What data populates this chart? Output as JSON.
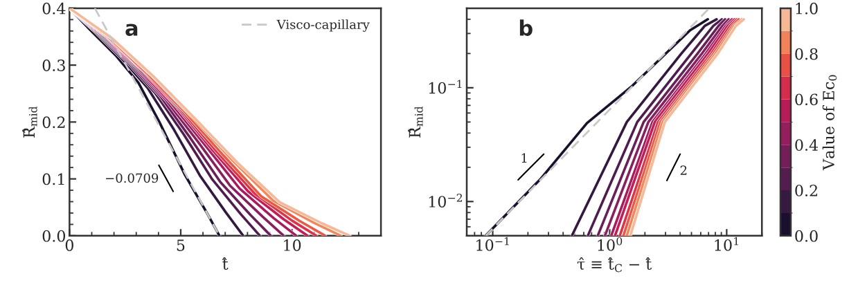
{
  "chart_data": [
    {
      "type": "line",
      "xlabel": "t̂",
      "ylabel": "R̂$_{mid}$",
      "xlim": [
        0,
        14
      ],
      "ylim": [
        0,
        0.4
      ],
      "xticks": [
        0,
        {
          "value": 1,
          "label": null
        },
        {
          "value": 2,
          "label": null
        },
        {
          "value": 3,
          "label": null
        },
        {
          "value": 4,
          "label": null
        },
        5,
        {
          "value": 6,
          "label": null
        },
        {
          "value": 7,
          "label": null
        },
        {
          "value": 8,
          "label": null
        },
        {
          "value": 9,
          "label": null
        },
        10,
        {
          "value": 11,
          "label": null
        },
        {
          "value": 12,
          "label": null
        },
        {
          "value": 13,
          "label": null
        }
      ],
      "yticks": [
        {
          "value": 0,
          "label": "0.0"
        },
        {
          "value": 0.02,
          "label": null
        },
        {
          "value": 0.04,
          "label": null
        },
        {
          "value": 0.06,
          "label": null
        },
        {
          "value": 0.08,
          "label": null
        },
        0.1,
        {
          "value": 0.12,
          "label": null
        },
        {
          "value": 0.14,
          "label": null
        },
        {
          "value": 0.16,
          "label": null
        },
        {
          "value": 0.18,
          "label": null
        },
        0.2,
        {
          "value": 0.22,
          "label": null
        },
        {
          "value": 0.24,
          "label": null
        },
        {
          "value": 0.26,
          "label": null
        },
        {
          "value": 0.28,
          "label": null
        },
        0.3,
        {
          "value": 0.32,
          "label": null
        },
        {
          "value": 0.34,
          "label": null
        },
        {
          "value": 0.36,
          "label": null
        },
        {
          "value": 0.38,
          "label": null
        },
        0.4
      ],
      "grid": false,
      "legend": "top right",
      "annotations": [
        "a",
        "−0.0709"
      ],
      "series": [
        {
          "color": "#1a0f2c",
          "x": [
            0,
            0.93,
            2.08,
            3.1,
            4.04,
            5.19,
            6.21,
            6.74
          ],
          "values": [
            0.4,
            0.362,
            0.317,
            0.269,
            0.2,
            0.107,
            0.038,
            0
          ]
        },
        {
          "color": "#33193f",
          "x": [
            0,
            1.17,
            2.34,
            3.51,
            4.69,
            5.86,
            7.03,
            7.81
          ],
          "values": [
            0.4,
            0.358,
            0.312,
            0.26,
            0.187,
            0.106,
            0.041,
            0
          ]
        },
        {
          "color": "#4e1c4e",
          "x": [
            0,
            1.28,
            2.57,
            3.85,
            5.14,
            6.42,
            7.7,
            8.56
          ],
          "values": [
            0.4,
            0.356,
            0.307,
            0.251,
            0.178,
            0.099,
            0.038,
            0
          ]
        },
        {
          "color": "#6a1f58",
          "x": [
            0,
            1.36,
            2.72,
            4.07,
            5.43,
            6.79,
            8.15,
            9.05
          ],
          "values": [
            0.4,
            0.355,
            0.304,
            0.246,
            0.172,
            0.094,
            0.036,
            0
          ]
        },
        {
          "color": "#881f5e",
          "x": [
            0,
            1.44,
            2.89,
            4.33,
            5.78,
            7.22,
            8.67,
            9.63
          ],
          "values": [
            0.4,
            0.354,
            0.3,
            0.239,
            0.165,
            0.088,
            0.034,
            0
          ]
        },
        {
          "color": "#a71c5f",
          "x": [
            0,
            1.53,
            3.06,
            4.59,
            6.12,
            7.65,
            9.18,
            10.2
          ],
          "values": [
            0.4,
            0.353,
            0.296,
            0.232,
            0.158,
            0.083,
            0.031,
            0
          ]
        },
        {
          "color": "#c41c55",
          "x": [
            0,
            1.61,
            3.21,
            4.82,
            6.42,
            8.03,
            9.63,
            10.7
          ],
          "values": [
            0.4,
            0.352,
            0.293,
            0.227,
            0.151,
            0.078,
            0.029,
            0
          ]
        },
        {
          "color": "#dd3347",
          "x": [
            0,
            1.67,
            3.33,
            5.0,
            6.66,
            8.33,
            9.99,
            11.1
          ],
          "values": [
            0.4,
            0.351,
            0.29,
            0.222,
            0.146,
            0.074,
            0.027,
            0
          ]
        },
        {
          "color": "#ec5844",
          "x": [
            0,
            1.73,
            3.45,
            5.18,
            6.9,
            8.63,
            10.35,
            11.5
          ],
          "values": [
            0.4,
            0.35,
            0.287,
            0.218,
            0.142,
            0.069,
            0.026,
            0
          ]
        },
        {
          "color": "#f3875c",
          "x": [
            0,
            1.83,
            3.66,
            5.49,
            7.32,
            9.15,
            10.98,
            12.2
          ],
          "values": [
            0.4,
            0.349,
            0.283,
            0.21,
            0.133,
            0.062,
            0.023,
            0
          ]
        },
        {
          "color": "#f6b896",
          "x": [
            0,
            1.89,
            3.78,
            5.67,
            7.56,
            9.45,
            11.34,
            12.6
          ],
          "values": [
            0.4,
            0.348,
            0.28,
            0.205,
            0.128,
            0.059,
            0.022,
            0
          ]
        },
        {
          "name": "Visco-capillary",
          "color": "#c8c8c8",
          "line_style": "dashed",
          "x": [
            1.14,
            6.74
          ],
          "values": [
            0.4,
            0
          ]
        }
      ]
    },
    {
      "type": "line",
      "log": "xy",
      "xlabel": "τ̂ ≡ t̂$_{C}$ − t̂",
      "ylabel": "R̂$_{mid}$",
      "xlim": [
        0.06,
        20
      ],
      "ylim": [
        0.005,
        0.5
      ],
      "xticks": [
        {
          "value": 0.06,
          "label": null
        },
        {
          "value": 0.07,
          "label": null
        },
        {
          "value": 0.08,
          "label": null
        },
        {
          "value": 0.09,
          "label": null
        },
        {
          "value": 0.1,
          "label": "10$^{−1}$"
        },
        {
          "value": 0.2,
          "label": null
        },
        {
          "value": 0.3,
          "label": null
        },
        {
          "value": 0.4,
          "label": null
        },
        {
          "value": 0.5,
          "label": null
        },
        {
          "value": 0.6,
          "label": null
        },
        {
          "value": 0.7,
          "label": null
        },
        {
          "value": 0.8,
          "label": null
        },
        {
          "value": 0.9,
          "label": null
        },
        {
          "value": 1,
          "label": "10$^{0}$"
        },
        {
          "value": 2,
          "label": null
        },
        {
          "value": 3,
          "label": null
        },
        {
          "value": 4,
          "label": null
        },
        {
          "value": 5,
          "label": null
        },
        {
          "value": 6,
          "label": null
        },
        {
          "value": 7,
          "label": null
        },
        {
          "value": 8,
          "label": null
        },
        {
          "value": 9,
          "label": null
        },
        {
          "value": 10,
          "label": "10$^{1}$"
        },
        {
          "value": 20,
          "label": null
        }
      ],
      "yticks": [
        {
          "value": 0.005,
          "label": null
        },
        {
          "value": 0.006,
          "label": null
        },
        {
          "value": 0.007,
          "label": null
        },
        {
          "value": 0.008,
          "label": null
        },
        {
          "value": 0.009,
          "label": null
        },
        {
          "value": 0.01,
          "label": "10$^{−2}$"
        },
        {
          "value": 0.02,
          "label": null
        },
        {
          "value": 0.03,
          "label": null
        },
        {
          "value": 0.04,
          "label": null
        },
        {
          "value": 0.05,
          "label": null
        },
        {
          "value": 0.06,
          "label": null
        },
        {
          "value": 0.07,
          "label": null
        },
        {
          "value": 0.08,
          "label": null
        },
        {
          "value": 0.09,
          "label": null
        },
        {
          "value": 0.1,
          "label": "10$^{−1}$"
        },
        {
          "value": 0.2,
          "label": null
        },
        {
          "value": 0.3,
          "label": null
        },
        {
          "value": 0.4,
          "label": null
        },
        {
          "value": 0.5,
          "label": null
        }
      ],
      "grid": false,
      "clabel": "Value of Ec$_{0}$",
      "clim": [
        0,
        1
      ],
      "cticks": [
        {
          "value": 0,
          "label": "0.0"
        },
        0.2,
        0.4,
        0.6,
        0.8,
        {
          "value": 1,
          "label": "1.0"
        }
      ],
      "annotations": [
        "b",
        "1",
        "2"
      ],
      "series": [
        {
          "color": "#1a0f2c",
          "x": [
            0.087,
            0.258,
            0.64,
            1.56,
            2.96,
            4.87,
            6.9
          ],
          "values": [
            0.005,
            0.0159,
            0.049,
            0.104,
            0.196,
            0.32,
            0.4
          ]
        },
        {
          "color": "#33193f",
          "x": [
            0.475,
            1.4,
            4.1,
            6.5,
            8.2
          ],
          "values": [
            0.005,
            0.05,
            0.2,
            0.35,
            0.4
          ]
        },
        {
          "color": "#4e1c4e",
          "x": [
            0.65,
            1.72,
            4.99,
            7.69,
            9.1
          ],
          "values": [
            0.005,
            0.05,
            0.2,
            0.35,
            0.4
          ]
        },
        {
          "color": "#6a1f58",
          "x": [
            0.79,
            1.95,
            5.64,
            8.53,
            9.7
          ],
          "values": [
            0.005,
            0.05,
            0.2,
            0.35,
            0.4
          ]
        },
        {
          "color": "#881f5e",
          "x": [
            0.91,
            2.14,
            6.15,
            9.19,
            10.4
          ],
          "values": [
            0.005,
            0.05,
            0.2,
            0.35,
            0.4
          ]
        },
        {
          "color": "#a71c5f",
          "x": [
            1.03,
            2.32,
            6.64,
            9.82,
            11.1
          ],
          "values": [
            0.005,
            0.05,
            0.2,
            0.35,
            0.4
          ]
        },
        {
          "color": "#c41c55",
          "x": [
            1.11,
            2.43,
            6.95,
            10.2,
            11.7
          ],
          "values": [
            0.005,
            0.05,
            0.2,
            0.35,
            0.4
          ]
        },
        {
          "color": "#dd3347",
          "x": [
            1.22,
            2.59,
            7.38,
            10.7,
            12.2
          ],
          "values": [
            0.005,
            0.05,
            0.2,
            0.35,
            0.4
          ]
        },
        {
          "color": "#ec5844",
          "x": [
            1.31,
            2.71,
            7.71,
            11.2,
            12.7
          ],
          "values": [
            0.005,
            0.05,
            0.2,
            0.35,
            0.4
          ]
        },
        {
          "color": "#f3875c",
          "x": [
            1.4,
            2.83,
            8.04,
            11.6,
            13.5
          ],
          "values": [
            0.005,
            0.05,
            0.2,
            0.35,
            0.4
          ]
        },
        {
          "color": "#f6b896",
          "x": [
            1.5,
            2.96,
            8.4,
            12.0,
            14.0
          ],
          "values": [
            0.005,
            0.05,
            0.2,
            0.35,
            0.4
          ]
        },
        {
          "color": "#c8c8c8",
          "line_style": "dashed",
          "x": [
            0.087,
            7.1
          ],
          "values": [
            0.005,
            0.5
          ]
        }
      ]
    }
  ]
}
